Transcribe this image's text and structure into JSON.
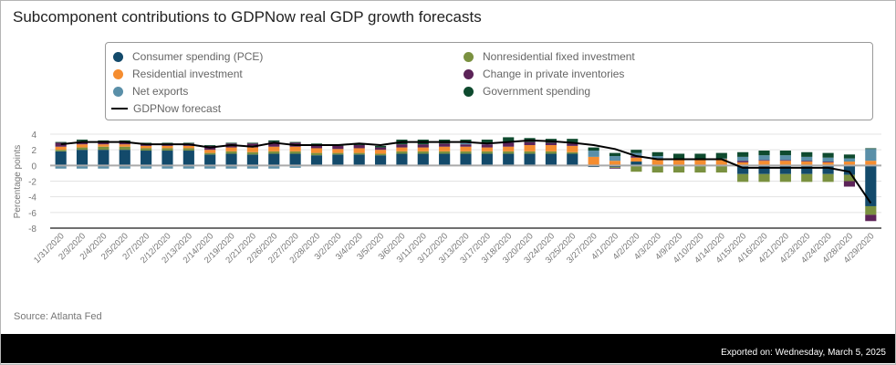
{
  "header": {
    "title": "Subcomponent contributions to GDPNow real GDP growth forecasts"
  },
  "legend": {
    "items": [
      {
        "key": "pce",
        "label": "Consumer spending (PCE)",
        "color": "#134a6b",
        "kind": "dot"
      },
      {
        "key": "res",
        "label": "Residential investment",
        "color": "#f58d30",
        "kind": "dot"
      },
      {
        "key": "nx",
        "label": "Net exports",
        "color": "#5a8fa8",
        "kind": "dot"
      },
      {
        "key": "line",
        "label": "GDPNow forecast",
        "color": "#000000",
        "kind": "line"
      },
      {
        "key": "nrfi",
        "label": "Nonresidential fixed investment",
        "color": "#7a9140",
        "kind": "dot"
      },
      {
        "key": "inv",
        "label": "Change in private inventories",
        "color": "#5c2358",
        "kind": "dot"
      },
      {
        "key": "gov",
        "label": "Government spending",
        "color": "#0e4a2e",
        "kind": "dot"
      }
    ]
  },
  "footer": {
    "source": "Source: Atlanta Fed",
    "exported": "Exported on: Wednesday, March 5, 2025"
  },
  "chart_data": {
    "type": "bar",
    "stacked": true,
    "title": "Subcomponent contributions to GDPNow real GDP growth forecasts",
    "xlabel": "",
    "ylabel": "Percentage points",
    "ylim": [
      -8,
      4
    ],
    "yticks": [
      4,
      2,
      0,
      -2,
      -4,
      -6,
      -8
    ],
    "grid": true,
    "legend_position": "top",
    "categories": [
      "1/31/2020",
      "2/3/2020",
      "2/4/2020",
      "2/5/2020",
      "2/7/2020",
      "2/12/2020",
      "2/13/2020",
      "2/14/2020",
      "2/19/2020",
      "2/21/2020",
      "2/26/2020",
      "2/27/2020",
      "2/28/2020",
      "3/2/2020",
      "3/4/2020",
      "3/5/2020",
      "3/6/2020",
      "3/11/2020",
      "3/12/2020",
      "3/13/2020",
      "3/17/2020",
      "3/18/2020",
      "3/20/2020",
      "3/24/2020",
      "3/25/2020",
      "3/27/2020",
      "4/1/2020",
      "4/2/2020",
      "4/3/2020",
      "4/9/2020",
      "4/10/2020",
      "4/14/2020",
      "4/15/2020",
      "4/16/2020",
      "4/21/2020",
      "4/23/2020",
      "4/24/2020",
      "4/28/2020",
      "4/29/2020"
    ],
    "series": [
      {
        "name": "Consumer spending (PCE)",
        "key": "pce",
        "color": "#134a6b",
        "values": [
          1.8,
          2.0,
          2.0,
          2.0,
          1.9,
          1.9,
          1.9,
          1.4,
          1.5,
          1.4,
          1.5,
          1.5,
          1.3,
          1.4,
          1.4,
          1.3,
          1.5,
          1.5,
          1.5,
          1.5,
          1.5,
          1.5,
          1.5,
          1.5,
          1.5,
          -0.2,
          -0.2,
          0.5,
          -0.1,
          -0.1,
          -0.1,
          -0.1,
          -1.1,
          -1.1,
          -1.1,
          -1.1,
          -1.1,
          -1.2,
          -5.2
        ]
      },
      {
        "name": "Residential investment",
        "key": "res",
        "color": "#f58d30",
        "values": [
          0.4,
          0.4,
          0.3,
          0.3,
          0.3,
          0.3,
          0.3,
          0.4,
          0.5,
          0.6,
          0.6,
          0.6,
          0.6,
          0.5,
          0.6,
          0.5,
          0.5,
          0.5,
          0.6,
          0.6,
          0.5,
          0.6,
          0.8,
          0.8,
          0.8,
          1.0,
          0.6,
          0.5,
          0.8,
          0.8,
          0.8,
          0.8,
          0.4,
          0.6,
          0.6,
          0.5,
          0.4,
          0.5,
          0.6
        ]
      },
      {
        "name": "Net exports",
        "key": "nx",
        "color": "#5a8fa8",
        "values": [
          -0.4,
          -0.4,
          -0.4,
          -0.4,
          -0.4,
          -0.4,
          -0.4,
          -0.4,
          -0.4,
          -0.4,
          -0.4,
          -0.3,
          -0.1,
          -0.1,
          -0.1,
          -0.1,
          0.0,
          -0.1,
          0.0,
          0.2,
          0.2,
          0.1,
          0.0,
          0.0,
          0.0,
          0.8,
          0.6,
          0.4,
          0.3,
          0.1,
          0.1,
          0.1,
          0.5,
          0.6,
          0.6,
          0.5,
          0.5,
          0.4,
          1.5
        ]
      },
      {
        "name": "Nonresidential fixed investment",
        "key": "nrfi",
        "color": "#7a9140",
        "values": [
          0.2,
          0.3,
          0.4,
          0.4,
          0.3,
          0.3,
          0.3,
          0.2,
          0.3,
          0.3,
          0.3,
          0.3,
          0.3,
          0.2,
          0.2,
          0.2,
          0.3,
          0.3,
          0.3,
          0.3,
          0.3,
          0.3,
          0.3,
          0.3,
          0.2,
          0.1,
          -0.1,
          -0.8,
          -0.8,
          -0.8,
          -0.8,
          -0.8,
          -1.0,
          -1.0,
          -1.0,
          -1.0,
          -1.0,
          -0.8,
          -1.1
        ]
      },
      {
        "name": "Change in private inventories",
        "key": "inv",
        "color": "#5c2358",
        "values": [
          0.5,
          0.4,
          0.3,
          0.3,
          0.3,
          0.3,
          0.3,
          0.5,
          0.5,
          0.5,
          0.6,
          0.5,
          0.5,
          0.4,
          0.4,
          0.3,
          0.4,
          0.4,
          0.4,
          0.3,
          0.4,
          0.5,
          0.4,
          0.3,
          0.3,
          0.0,
          -0.1,
          0.2,
          0.1,
          0.0,
          0.0,
          0.0,
          0.2,
          0.1,
          0.1,
          0.1,
          0.1,
          -0.7,
          -0.8
        ]
      },
      {
        "name": "Government spending",
        "key": "gov",
        "color": "#0e4a2e",
        "values": [
          0.1,
          0.2,
          0.2,
          0.2,
          0.1,
          0.1,
          0.1,
          0.1,
          0.1,
          0.1,
          0.2,
          0.1,
          0.1,
          0.1,
          0.1,
          0.2,
          0.6,
          0.6,
          0.5,
          0.4,
          0.4,
          0.6,
          0.5,
          0.5,
          0.6,
          0.4,
          0.4,
          0.4,
          0.5,
          0.6,
          0.6,
          0.7,
          0.6,
          0.6,
          0.6,
          0.6,
          0.6,
          0.5,
          0.1
        ]
      }
    ],
    "line": {
      "name": "GDPNow forecast",
      "color": "#000000",
      "values": [
        2.7,
        3.0,
        3.0,
        3.0,
        2.7,
        2.7,
        2.7,
        2.3,
        2.6,
        2.4,
        2.9,
        2.6,
        2.6,
        2.6,
        2.8,
        2.6,
        3.0,
        3.0,
        3.0,
        3.0,
        2.8,
        3.0,
        3.2,
        3.1,
        2.9,
        2.6,
        2.1,
        1.2,
        0.8,
        0.8,
        0.8,
        0.8,
        -0.3,
        -0.3,
        -0.3,
        -0.3,
        -0.3,
        -0.8,
        -4.8
      ]
    }
  }
}
